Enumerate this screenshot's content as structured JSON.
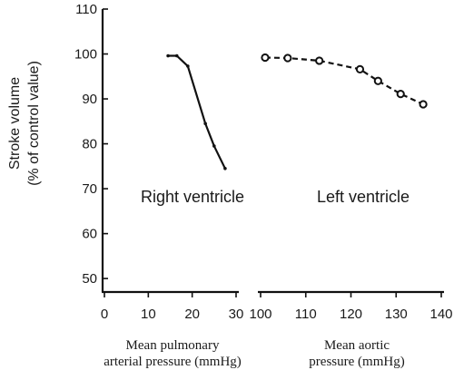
{
  "chart_data": {
    "type": "line",
    "ylabel_line1": "Stroke volume",
    "ylabel_line2": "(% of control value)",
    "ylim": [
      47,
      110
    ],
    "y_ticks": [
      50,
      60,
      70,
      80,
      90,
      100,
      110
    ],
    "panels": [
      {
        "label": "Right ventricle",
        "xlabel_line1": "Mean pulmonary",
        "xlabel_line2": "arterial pressure (mmHg)",
        "xlim": [
          0,
          30
        ],
        "x_ticks": [
          0,
          10,
          20,
          30
        ],
        "series": [
          {
            "style": "solid",
            "marker": "dot",
            "color": "#111111",
            "x": [
              14.5,
              16.5,
              19.0,
              23.0,
              25.0,
              27.5
            ],
            "y": [
              99.6,
              99.6,
              97.3,
              84.5,
              79.5,
              74.5
            ]
          }
        ]
      },
      {
        "label": "Left ventricle",
        "xlabel_line1": "Mean aortic",
        "xlabel_line2": "pressure (mmHg)",
        "xlim": [
          100,
          140
        ],
        "x_ticks": [
          100,
          110,
          120,
          130,
          140
        ],
        "series": [
          {
            "style": "dashed",
            "marker": "open-circle",
            "color": "#111111",
            "x": [
              101,
              106,
              113,
              122,
              126,
              131,
              136
            ],
            "y": [
              99.2,
              99.1,
              98.5,
              96.6,
              94.0,
              91.1,
              88.8
            ]
          }
        ]
      }
    ]
  }
}
